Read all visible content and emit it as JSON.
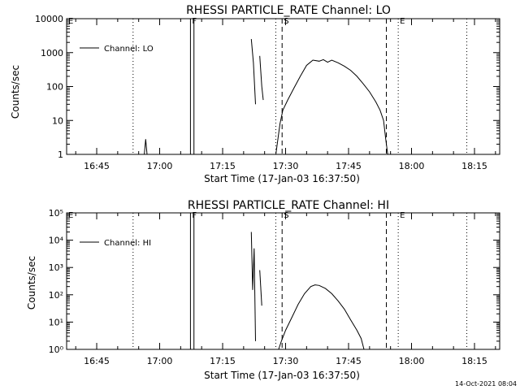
{
  "footer_timestamp": "14-Oct-2021 08:04",
  "chart_data": [
    {
      "type": "line",
      "title": "RHESSI PARTICLE_RATE Channel: LO",
      "xlabel": "Start Time (17-Jan-03 16:37:50)",
      "ylabel": "Counts/sec",
      "legend": "Channel: LO",
      "legend_position": "top-left",
      "y_scale": "log",
      "ylim": [
        1,
        10000
      ],
      "xlim": [
        "16:37:50",
        "18:21:00"
      ],
      "x_ticks": [
        "16:45",
        "17:00",
        "17:15",
        "17:30",
        "17:45",
        "18:00",
        "18:15"
      ],
      "y_ticks": [
        "1",
        "10",
        "100",
        "1000",
        "10000"
      ],
      "markers": [
        {
          "label": "E",
          "time": "16:37:50",
          "style": "dotted"
        },
        {
          "label": "",
          "time": "16:53:40",
          "style": "dotted"
        },
        {
          "label": "F",
          "time": "17:07:20",
          "style": "solid"
        },
        {
          "label": "",
          "time": "17:08:10",
          "style": "solid"
        },
        {
          "label": "",
          "time": "17:27:40",
          "style": "dotted"
        },
        {
          "label": "S",
          "time": "17:29:10",
          "style": "dashed"
        },
        {
          "label": "",
          "time": "17:54:00",
          "style": "dashed"
        },
        {
          "label": "E",
          "time": "17:56:50",
          "style": "dotted"
        },
        {
          "label": "",
          "time": "18:13:10",
          "style": "dotted"
        }
      ],
      "series": [
        {
          "segments": [
            [
              [
                "16:56:20",
                1
              ],
              [
                "16:56:40",
                2.8
              ],
              [
                "16:57:00",
                1
              ]
            ],
            [
              [
                "17:21:50",
                2500
              ],
              [
                "17:22:20",
                500
              ],
              [
                "17:22:50",
                30
              ]
            ],
            [
              [
                "17:23:50",
                800
              ],
              [
                "17:24:20",
                100
              ],
              [
                "17:24:40",
                40
              ]
            ],
            [
              [
                "17:27:40",
                1
              ],
              [
                "17:28:00",
                2
              ],
              [
                "17:28:40",
                8
              ],
              [
                "17:29:20",
                20
              ],
              [
                "17:30:30",
                40
              ],
              [
                "17:32:00",
                90
              ],
              [
                "17:33:30",
                200
              ],
              [
                "17:35:00",
                420
              ],
              [
                "17:36:30",
                600
              ],
              [
                "17:38:00",
                560
              ],
              [
                "17:39:00",
                620
              ],
              [
                "17:40:00",
                520
              ],
              [
                "17:41:00",
                600
              ],
              [
                "17:42:30",
                500
              ],
              [
                "17:44:00",
                400
              ],
              [
                "17:45:30",
                300
              ],
              [
                "17:47:00",
                200
              ],
              [
                "17:48:30",
                120
              ],
              [
                "17:50:00",
                70
              ],
              [
                "17:51:30",
                35
              ],
              [
                "17:52:30",
                20
              ],
              [
                "17:53:20",
                10
              ],
              [
                "17:53:50",
                3
              ],
              [
                "17:54:20",
                1
              ]
            ]
          ]
        }
      ]
    },
    {
      "type": "line",
      "title": "RHESSI PARTICLE_RATE Channel: HI",
      "xlabel": "Start Time (17-Jan-03 16:37:50)",
      "ylabel": "Counts/sec",
      "legend": "Channel: HI",
      "legend_position": "top-left",
      "y_scale": "log",
      "ylim": [
        1,
        100000
      ],
      "xlim": [
        "16:37:50",
        "18:21:00"
      ],
      "x_ticks": [
        "16:45",
        "17:00",
        "17:15",
        "17:30",
        "17:45",
        "18:00",
        "18:15"
      ],
      "y_ticks": [
        "10⁰",
        "10¹",
        "10²",
        "10³",
        "10⁴",
        "10⁵"
      ],
      "markers": [
        {
          "label": "E",
          "time": "16:37:50",
          "style": "dotted"
        },
        {
          "label": "",
          "time": "16:53:40",
          "style": "dotted"
        },
        {
          "label": "F",
          "time": "17:07:20",
          "style": "solid"
        },
        {
          "label": "",
          "time": "17:08:10",
          "style": "solid"
        },
        {
          "label": "",
          "time": "17:27:40",
          "style": "dotted"
        },
        {
          "label": "S",
          "time": "17:29:10",
          "style": "dashed"
        },
        {
          "label": "",
          "time": "17:54:00",
          "style": "dashed"
        },
        {
          "label": "E",
          "time": "17:56:50",
          "style": "dotted"
        },
        {
          "label": "",
          "time": "18:13:10",
          "style": "dotted"
        }
      ],
      "series": [
        {
          "segments": [
            [
              [
                "17:21:50",
                20000
              ],
              [
                "17:22:10",
                150
              ],
              [
                "17:22:30",
                5000
              ],
              [
                "17:22:50",
                2
              ]
            ],
            [
              [
                "17:23:50",
                800
              ],
              [
                "17:24:20",
                40
              ]
            ],
            [
              [
                "17:28:20",
                1
              ],
              [
                "17:29:00",
                2
              ],
              [
                "17:30:00",
                5
              ],
              [
                "17:31:30",
                15
              ],
              [
                "17:33:00",
                45
              ],
              [
                "17:34:30",
                110
              ],
              [
                "17:36:00",
                200
              ],
              [
                "17:37:00",
                230
              ],
              [
                "17:38:00",
                220
              ],
              [
                "17:39:30",
                170
              ],
              [
                "17:41:00",
                110
              ],
              [
                "17:42:30",
                60
              ],
              [
                "17:44:00",
                30
              ],
              [
                "17:45:30",
                12
              ],
              [
                "17:47:00",
                5
              ],
              [
                "17:48:00",
                2.5
              ],
              [
                "17:48:40",
                1
              ]
            ]
          ]
        }
      ]
    }
  ]
}
